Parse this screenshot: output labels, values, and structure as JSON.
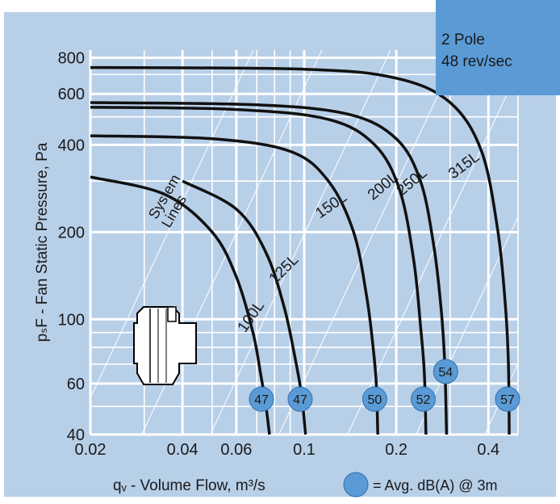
{
  "info_box": {
    "line1": "2 Pole",
    "line2": "48 rev/sec"
  },
  "chart_data": {
    "type": "line",
    "xscale": "log",
    "yscale": "log",
    "xlim": [
      0.02,
      0.5
    ],
    "ylim": [
      40,
      850
    ],
    "xlabel": "qᵥ - Volume Flow, m³/s",
    "ylabel": "pₛF - Fan Static Pressure, Pa",
    "x_ticks": [
      0.02,
      0.04,
      0.06,
      0.1,
      0.2,
      0.4
    ],
    "x_tick_labels": [
      "0.02",
      "0.04",
      "0.06",
      "0.1",
      "0.2",
      "0.4"
    ],
    "y_ticks": [
      40,
      60,
      100,
      200,
      400,
      600,
      800
    ],
    "y_tick_labels": [
      "40",
      "60",
      "100",
      "200",
      "400",
      "600",
      "800"
    ],
    "grid": true,
    "series": [
      {
        "name": "100L",
        "x": [
          0.02,
          0.035,
          0.05,
          0.06,
          0.068,
          0.072,
          0.075,
          0.077
        ],
        "y": [
          310,
          270,
          200,
          140,
          90,
          65,
          50,
          40
        ],
        "dba": "47",
        "dba_x": 0.0725,
        "dba_y": 53
      },
      {
        "name": "125L",
        "x": [
          0.04,
          0.06,
          0.075,
          0.086,
          0.093,
          0.098,
          0.101
        ],
        "y": [
          300,
          240,
          170,
          110,
          75,
          55,
          40
        ],
        "dba": "47",
        "dba_x": 0.097,
        "dba_y": 53
      },
      {
        "name": "150L",
        "x": [
          0.02,
          0.05,
          0.09,
          0.12,
          0.145,
          0.16,
          0.168,
          0.172,
          0.174
        ],
        "y": [
          430,
          420,
          380,
          300,
          200,
          120,
          80,
          60,
          40
        ],
        "dba": "50",
        "dba_x": 0.17,
        "dba_y": 53
      },
      {
        "name": "200L",
        "x": [
          0.02,
          0.06,
          0.12,
          0.17,
          0.205,
          0.228,
          0.24,
          0.247,
          0.25
        ],
        "y": [
          540,
          530,
          490,
          400,
          280,
          160,
          95,
          65,
          40
        ],
        "dba": "52",
        "dba_x": 0.245,
        "dba_y": 53
      },
      {
        "name": "250L",
        "x": [
          0.02,
          0.07,
          0.14,
          0.2,
          0.24,
          0.265,
          0.28,
          0.288,
          0.292
        ],
        "y": [
          560,
          550,
          510,
          420,
          300,
          180,
          110,
          70,
          40
        ],
        "dba": "54",
        "dba_x": 0.29,
        "dba_y": 66
      },
      {
        "name": "315L",
        "x": [
          0.02,
          0.1,
          0.2,
          0.3,
          0.38,
          0.43,
          0.455,
          0.465,
          0.468
        ],
        "y": [
          740,
          730,
          680,
          560,
          380,
          200,
          110,
          70,
          40
        ],
        "dba": "57",
        "dba_x": 0.462,
        "dba_y": 53
      }
    ],
    "curve_labels": [
      "100L",
      "125L",
      "150L",
      "200L",
      "250L",
      "315L"
    ],
    "system_lines_label": [
      "System",
      "Lines"
    ],
    "legend_text": "= Avg. dB(A) @ 3m"
  }
}
